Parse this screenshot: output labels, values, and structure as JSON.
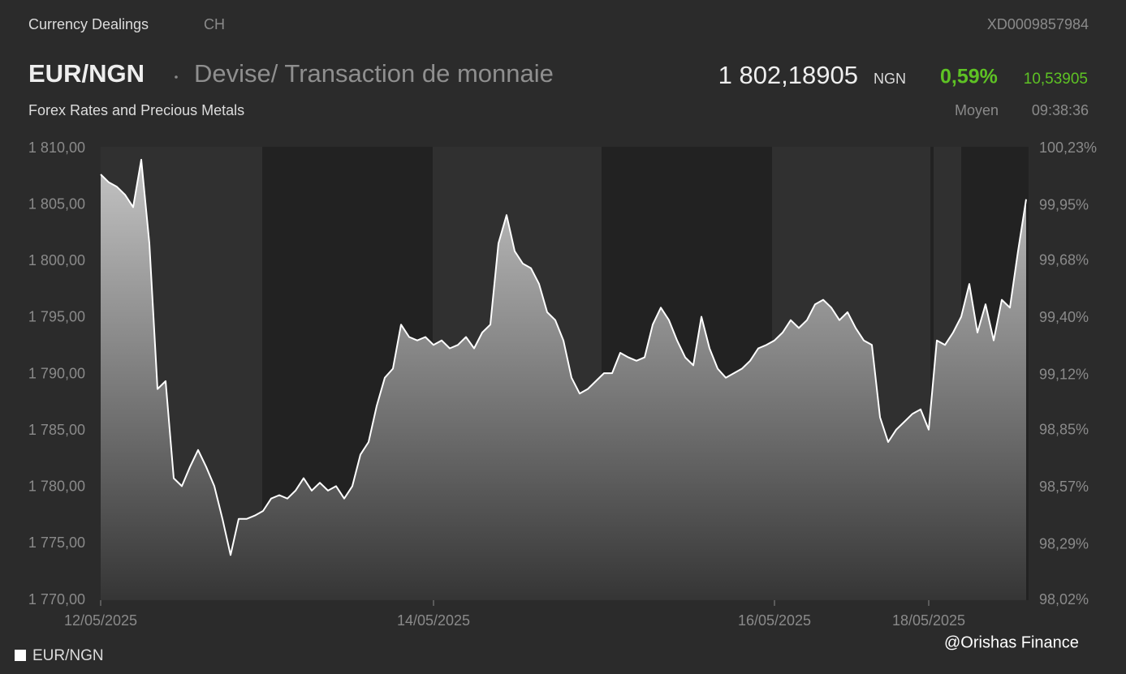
{
  "header": {
    "section": "Currency Dealings",
    "country": "CH",
    "isin": "XD0009857984",
    "symbol": "EUR/NGN",
    "description": "Devise/ Transaction de monnaie",
    "price": "1 802,18905",
    "currency": "NGN",
    "change_pct": "0,59%",
    "change_abs": "10,53905",
    "market": "Forex Rates and Precious Metals",
    "price_type": "Moyen",
    "time": "09:38:36",
    "watermark": "@Orishas Finance"
  },
  "chart_data": {
    "type": "area",
    "categories": [
      "12/05/2025",
      null,
      null,
      null,
      null,
      null,
      null,
      null,
      null,
      null,
      null,
      null,
      null,
      null,
      null,
      null,
      null,
      null,
      null,
      null,
      null,
      null,
      null,
      null,
      null,
      null,
      null,
      null,
      null,
      null,
      null,
      null,
      null,
      null,
      null,
      null,
      null,
      null,
      null,
      null,
      null,
      "14/05/2025",
      null,
      null,
      null,
      null,
      null,
      null,
      null,
      null,
      null,
      null,
      null,
      null,
      null,
      null,
      null,
      null,
      null,
      null,
      null,
      null,
      null,
      null,
      null,
      null,
      null,
      null,
      null,
      null,
      null,
      null,
      null,
      null,
      null,
      null,
      null,
      null,
      null,
      null,
      null,
      null,
      null,
      "16/05/2025",
      null,
      null,
      null,
      null,
      null,
      null,
      null,
      null,
      null,
      null,
      null,
      null,
      null,
      null,
      null,
      null,
      null,
      null,
      "18/05/2025",
      null,
      null,
      null,
      null,
      null,
      null,
      null,
      null,
      null,
      null,
      null,
      null
    ],
    "series": [
      {
        "name": "EUR/NGN",
        "color": "#ffffff",
        "values": [
          1807.7,
          1807.0,
          1806.6,
          1805.9,
          1804.8,
          1809.0,
          1801.6,
          1788.7,
          1789.4,
          1780.8,
          1780.1,
          1781.8,
          1783.3,
          1781.8,
          1780.1,
          1777.2,
          1774.0,
          1777.2,
          1777.2,
          1777.5,
          1777.9,
          1779.0,
          1779.3,
          1779.0,
          1779.7,
          1780.8,
          1779.7,
          1780.4,
          1779.7,
          1780.1,
          1779.0,
          1780.1,
          1782.9,
          1784.0,
          1787.2,
          1789.7,
          1790.5,
          1794.4,
          1793.3,
          1793.0,
          1793.3,
          1792.6,
          1793.0,
          1792.3,
          1792.6,
          1793.3,
          1792.3,
          1793.7,
          1794.4,
          1801.6,
          1804.1,
          1800.9,
          1799.8,
          1799.4,
          1798.0,
          1795.5,
          1794.8,
          1793.0,
          1789.7,
          1788.3,
          1788.7,
          1789.4,
          1790.1,
          1790.1,
          1791.9,
          1791.5,
          1791.2,
          1791.5,
          1794.4,
          1795.9,
          1794.8,
          1793.0,
          1791.5,
          1790.8,
          1795.1,
          1792.3,
          1790.5,
          1789.7,
          1790.1,
          1790.5,
          1791.2,
          1792.3,
          1792.6,
          1793.0,
          1793.7,
          1794.8,
          1794.1,
          1794.8,
          1796.2,
          1796.6,
          1795.9,
          1794.8,
          1795.5,
          1794.1,
          1793.0,
          1792.6,
          1786.2,
          1784.0,
          1785.1,
          1785.8,
          1786.5,
          1786.9,
          1785.1,
          1793.0,
          1792.6,
          1793.7,
          1795.1,
          1798.0,
          1793.7,
          1796.2,
          1793.0,
          1796.6,
          1795.9,
          1800.9,
          1805.5
        ]
      }
    ],
    "ylim": [
      1770,
      1810
    ],
    "yticks": [
      {
        "value": 1770,
        "label": "1 770,00"
      },
      {
        "value": 1775,
        "label": "1 775,00"
      },
      {
        "value": 1780,
        "label": "1 780,00"
      },
      {
        "value": 1785,
        "label": "1 785,00"
      },
      {
        "value": 1790,
        "label": "1 790,00"
      },
      {
        "value": 1795,
        "label": "1 795,00"
      },
      {
        "value": 1800,
        "label": "1 800,00"
      },
      {
        "value": 1805,
        "label": "1 805,00"
      },
      {
        "value": 1810,
        "label": "1 810,00"
      }
    ],
    "y2lim": [
      98.02,
      100.23
    ],
    "y2ticks": [
      {
        "value": 98.02,
        "label": "98,02%"
      },
      {
        "value": 98.29,
        "label": "98,29%"
      },
      {
        "value": 98.57,
        "label": "98,57%"
      },
      {
        "value": 98.85,
        "label": "98,85%"
      },
      {
        "value": 99.12,
        "label": "99,12%"
      },
      {
        "value": 99.4,
        "label": "99,40%"
      },
      {
        "value": 99.68,
        "label": "99,68%"
      },
      {
        "value": 99.95,
        "label": "99,95%"
      },
      {
        "value": 100.23,
        "label": "100,23%"
      }
    ],
    "grid": false,
    "legend": "bottom-left"
  }
}
